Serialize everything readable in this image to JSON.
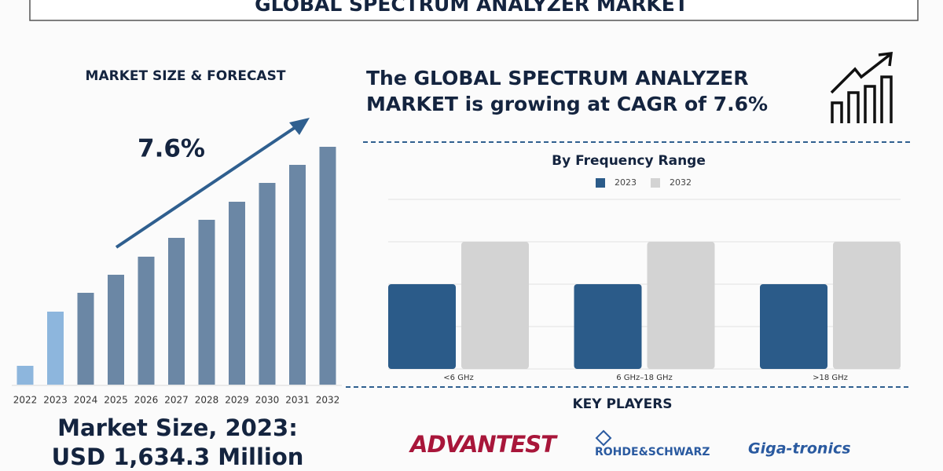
{
  "header": {
    "title": "GLOBAL SPECTRUM ANALYZER MARKET"
  },
  "headline": [
    "The GLOBAL SPECTRUM ANALYZER",
    "MARKET is growing at CAGR of 7.6%"
  ],
  "chart_data": [
    {
      "type": "bar",
      "title": "MARKET SIZE & FORECAST",
      "annotation": "7.6%",
      "categories": [
        "2022",
        "2023",
        "2024",
        "2025",
        "2026",
        "2027",
        "2028",
        "2029",
        "2030",
        "2031",
        "2032"
      ],
      "values": [
        24,
        93,
        117,
        140,
        163,
        187,
        210,
        233,
        257,
        280,
        303
      ],
      "colors": [
        "#8db6dd",
        "#8db6dd",
        "#6b87a5",
        "#6b87a5",
        "#6b87a5",
        "#6b87a5",
        "#6b87a5",
        "#6b87a5",
        "#6b87a5",
        "#6b87a5",
        "#6b87a5"
      ]
    },
    {
      "type": "grouped_bar",
      "title": "By Frequency Range",
      "categories": [
        "<6 GHz",
        "6 GHz–18 GHz",
        ">18 GHz"
      ],
      "series": [
        {
          "name": "2023",
          "color": "#2b5b89",
          "values": [
            2,
            2,
            2
          ]
        },
        {
          "name": "2032",
          "color": "#d3d3d3",
          "values": [
            3,
            3,
            3
          ]
        }
      ],
      "ylim": [
        0,
        4
      ],
      "yticks": [
        0,
        1,
        2,
        3,
        4
      ],
      "grid": true
    }
  ],
  "market_size": [
    "Market Size, 2023:",
    "USD 1,634.3 Million"
  ],
  "key_players": {
    "title": "KEY PLAYERS",
    "logos": [
      "ADVANTEST",
      "ROHDE&SCHWARZ",
      "Giga-tronics"
    ]
  }
}
